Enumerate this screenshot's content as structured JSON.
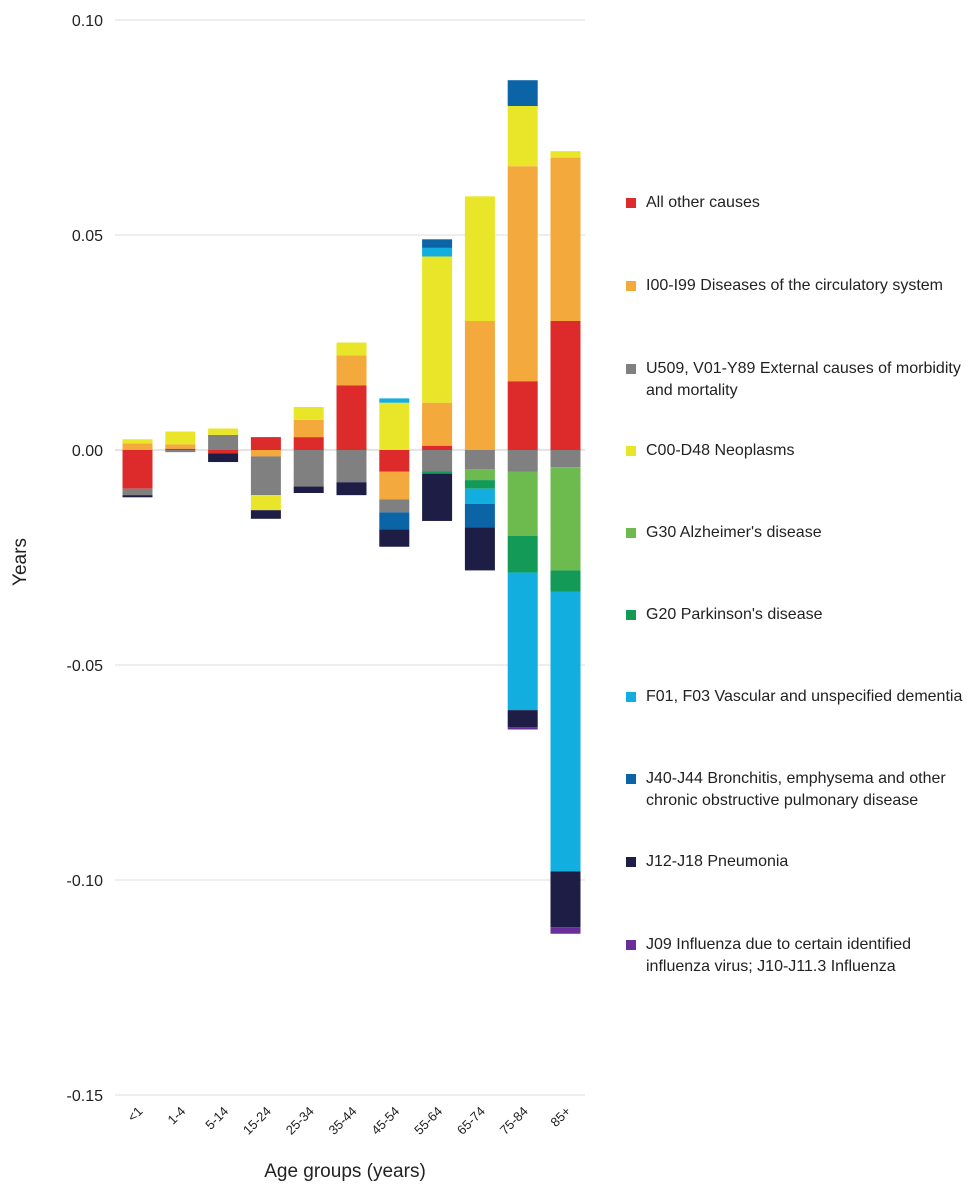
{
  "chart_data": {
    "type": "bar",
    "stacked": true,
    "xlabel": "Age groups (years)",
    "ylabel": "Years",
    "ylim": [
      -0.15,
      0.1
    ],
    "yticks": [
      0.1,
      0.05,
      0.0,
      -0.05,
      -0.1,
      -0.15
    ],
    "ytick_labels": [
      "0.10",
      "0.05",
      "0.00",
      "-0.05",
      "-0.10",
      "-0.15"
    ],
    "grid": true,
    "legend_position": "right",
    "categories": [
      "<1",
      "1-4",
      "5-14",
      "15-24",
      "25-34",
      "35-44",
      "45-54",
      "55-64",
      "65-74",
      "75-84",
      "85+"
    ],
    "series": [
      {
        "name": "All other causes",
        "color": "#dd2b2b",
        "values": [
          -0.009,
          0.0003,
          -0.0008,
          0.003,
          0.003,
          0.015,
          -0.005,
          0.001,
          0.0,
          0.016,
          0.03
        ]
      },
      {
        "name": "I00-I99 Diseases of the circulatory system",
        "color": "#f3a93b",
        "values": [
          0.0015,
          0.001,
          0.0,
          -0.0015,
          0.004,
          0.007,
          -0.0065,
          0.01,
          0.03,
          0.05,
          0.038
        ]
      },
      {
        "name": "U509, V01-Y89 External causes of morbidity  and mortality",
        "color": "#808080",
        "values": [
          -0.0015,
          -0.0005,
          0.0035,
          -0.009,
          -0.0085,
          -0.0075,
          -0.003,
          -0.005,
          -0.0045,
          -0.005,
          -0.004
        ]
      },
      {
        "name": "C00-D48 Neoplasms",
        "color": "#e9e62a",
        "values": [
          0.001,
          0.003,
          0.0015,
          -0.0035,
          0.003,
          0.003,
          0.011,
          0.034,
          0.029,
          0.014,
          0.0015
        ]
      },
      {
        "name": "G30 Alzheimer's disease",
        "color": "#6dbb4f",
        "values": [
          0,
          0,
          0,
          0,
          0,
          0,
          0,
          0,
          -0.0025,
          -0.015,
          -0.024
        ]
      },
      {
        "name": "G20 Parkinson's disease",
        "color": "#139a57",
        "values": [
          0,
          0,
          0,
          0,
          0,
          0,
          0,
          -0.0005,
          -0.002,
          -0.0085,
          -0.005
        ]
      },
      {
        "name": "F01, F03 Vascular and unspecified dementia",
        "color": "#11aedf",
        "values": [
          0,
          0,
          0,
          0,
          0,
          0,
          0.001,
          0.002,
          -0.0035,
          -0.032,
          -0.065
        ]
      },
      {
        "name": "J40-J44 Bronchitis, emphysema and other chronic obstructive pulmonary disease",
        "color": "#0b64a6",
        "values": [
          0,
          0,
          0,
          0,
          0,
          0,
          -0.004,
          0.002,
          -0.0055,
          0.006,
          0.0
        ]
      },
      {
        "name": "J12-J18 Pneumonia",
        "color": "#1d1d46",
        "values": [
          -0.0005,
          0,
          -0.002,
          -0.002,
          -0.0015,
          -0.003,
          -0.004,
          -0.011,
          -0.01,
          -0.004,
          -0.013
        ]
      },
      {
        "name": "J09 Influenza due to certain identified influenza virus; J10-J11.3 Influenza",
        "color": "#6a2e9a",
        "values": [
          0,
          0,
          0,
          0,
          0,
          0,
          0,
          0,
          0,
          -0.0005,
          -0.0015
        ]
      }
    ]
  }
}
